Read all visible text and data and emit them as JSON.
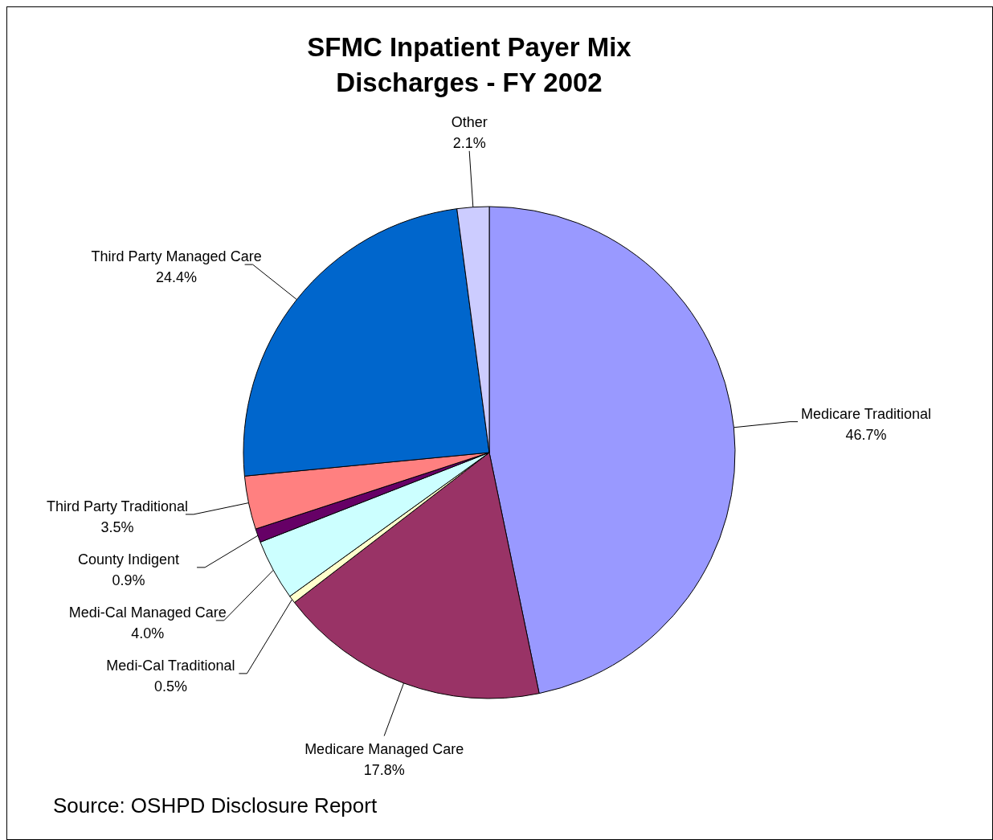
{
  "chart_data": {
    "type": "pie",
    "title": "SFMC Inpatient Payer Mix\nDischarges - FY 2002",
    "categories": [
      "Medicare Traditional",
      "Medicare Managed Care",
      "Medi-Cal Traditional",
      "Medi-Cal Managed Care",
      "County Indigent",
      "Third Party Traditional",
      "Third Party Managed Care",
      "Other"
    ],
    "values": [
      46.7,
      17.8,
      0.5,
      4.0,
      0.9,
      3.5,
      24.4,
      2.1
    ],
    "value_labels": [
      "46.7%",
      "17.8%",
      "0.5%",
      "4.0%",
      "0.9%",
      "3.5%",
      "24.4%",
      "2.1%"
    ],
    "colors": [
      "#9999ff",
      "#993366",
      "#ffffcc",
      "#ccffff",
      "#660066",
      "#ff8080",
      "#0066cc",
      "#ccccff"
    ],
    "annotations": [
      "Source: OSHPD Disclosure Report"
    ]
  }
}
